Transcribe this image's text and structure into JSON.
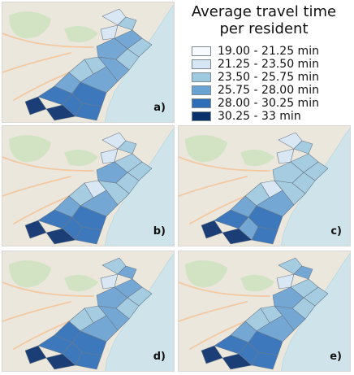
{
  "legend": {
    "title_line_1": "Average travel time",
    "title_line_2": "per resident",
    "classes": [
      {
        "label": "19.00 - 21.25 min",
        "color": "#f7fbff"
      },
      {
        "label": "21.25 - 23.50 min",
        "color": "#d7e6f5"
      },
      {
        "label": "23.50 - 25.75 min",
        "color": "#9ecae1"
      },
      {
        "label": "25.75 - 28.00 min",
        "color": "#6aa2d4"
      },
      {
        "label": "28.00 - 30.25 min",
        "color": "#2f6fb8"
      },
      {
        "label": "30.25 - 33 min",
        "color": "#08306b"
      }
    ]
  },
  "panels": [
    {
      "tag": "a)"
    },
    {
      "tag": "b)"
    },
    {
      "tag": "c)"
    },
    {
      "tag": "d)"
    },
    {
      "tag": "e)"
    }
  ],
  "colors": {
    "sea": "#cfe4ea",
    "land": "#ebe7dd",
    "hill_green": "#cfe2c0",
    "road": "#f2c9a2",
    "boundary": "#6b7a88"
  }
}
